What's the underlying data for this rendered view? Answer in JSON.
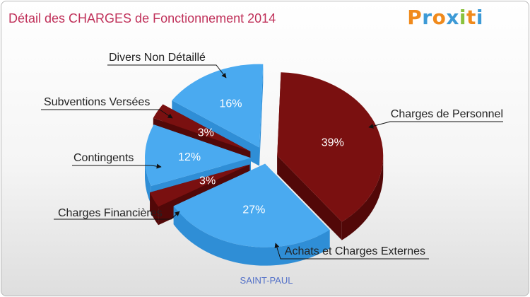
{
  "title": "Détail des CHARGES de Fonctionnement 2014",
  "logo": {
    "letters": [
      "P",
      "r",
      "o",
      "x",
      "i",
      "t",
      "i"
    ],
    "colors": [
      "#f08a1c",
      "#3d9ad6",
      "#f08a1c",
      "#3d9ad6",
      "#8ac23d",
      "#f08a1c",
      "#3d9ad6"
    ]
  },
  "subtitle": "SAINT-PAUL",
  "colors": {
    "blue_top": "#4aaaf0",
    "blue_side": "#2f8ed6",
    "red_top": "#7a1010",
    "red_side": "#520808",
    "label_text": "#222222",
    "pct_text": "#ffffff"
  },
  "chart_data": {
    "type": "pie",
    "title": "Détail des CHARGES de Fonctionnement 2014",
    "series": [
      {
        "name": "Charges de Personnel",
        "value": 39,
        "label": "39%",
        "color": "red"
      },
      {
        "name": "Achats et Charges Externes",
        "value": 27,
        "label": "27%",
        "color": "blue"
      },
      {
        "name": "Charges Financières",
        "value": 3,
        "label": "3%",
        "color": "red"
      },
      {
        "name": "Contingents",
        "value": 12,
        "label": "12%",
        "color": "blue"
      },
      {
        "name": "Subventions Versées",
        "value": 3,
        "label": "3%",
        "color": "red"
      },
      {
        "name": "Divers Non Détaillé",
        "value": 16,
        "label": "16%",
        "color": "blue"
      }
    ]
  }
}
